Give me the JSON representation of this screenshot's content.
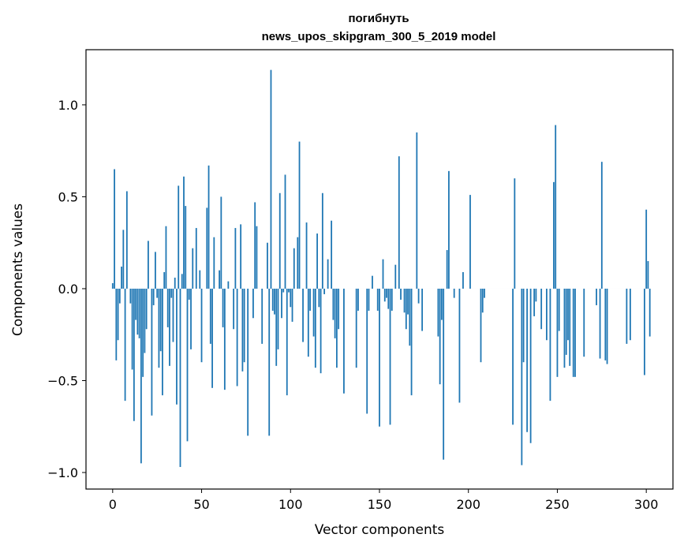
{
  "chart_data": {
    "type": "bar",
    "title_line1": "погибнуть",
    "title_line2": "news_upos_skipgram_300_5_2019 model",
    "xlabel": "Vector components",
    "ylabel": "Components values",
    "xlim": [
      -15,
      315
    ],
    "ylim": [
      -1.09,
      1.3
    ],
    "xticks": [
      0,
      50,
      100,
      150,
      200,
      250,
      300
    ],
    "xtick_labels": [
      "0",
      "50",
      "100",
      "150",
      "200",
      "250",
      "300"
    ],
    "yticks": [
      -1.0,
      -0.5,
      0.0,
      0.5,
      1.0
    ],
    "ytick_labels": [
      "−1.0",
      "−0.5",
      "0.0",
      "0.5",
      "1.0"
    ],
    "bar_color": "#1f77b4",
    "values": [
      0.03,
      0.65,
      -0.39,
      -0.28,
      -0.08,
      0.12,
      0.32,
      -0.61,
      0.53,
      0.0,
      -0.08,
      -0.44,
      -0.72,
      -0.17,
      -0.25,
      -0.27,
      -0.95,
      -0.48,
      -0.35,
      -0.22,
      0.26,
      0.0,
      -0.69,
      -0.09,
      0.2,
      -0.05,
      -0.43,
      -0.34,
      -0.58,
      0.09,
      0.34,
      -0.21,
      -0.42,
      -0.05,
      -0.29,
      0.06,
      -0.63,
      0.56,
      -0.97,
      0.08,
      0.61,
      0.45,
      -0.83,
      -0.06,
      -0.33,
      0.22,
      0.0,
      0.33,
      0.0,
      0.1,
      -0.4,
      0.0,
      0.0,
      0.44,
      0.67,
      -0.3,
      -0.54,
      0.28,
      0.0,
      0.0,
      0.1,
      0.5,
      -0.21,
      -0.55,
      0.0,
      0.04,
      0.0,
      0.0,
      -0.22,
      0.33,
      -0.53,
      0.0,
      0.35,
      -0.45,
      -0.4,
      0.0,
      -0.8,
      0.0,
      0.0,
      -0.16,
      0.47,
      0.34,
      0.0,
      0.0,
      -0.3,
      0.0,
      0.0,
      0.25,
      -0.8,
      1.19,
      -0.12,
      -0.14,
      -0.42,
      -0.33,
      0.52,
      -0.16,
      -0.02,
      0.62,
      -0.58,
      -0.02,
      -0.1,
      -0.18,
      0.22,
      0.0,
      0.28,
      0.8,
      0.0,
      -0.29,
      0.0,
      0.36,
      -0.37,
      -0.12,
      0.0,
      -0.26,
      -0.43,
      0.3,
      -0.1,
      -0.46,
      0.52,
      -0.03,
      0.0,
      0.16,
      0.0,
      0.37,
      -0.17,
      -0.27,
      -0.43,
      -0.22,
      0.0,
      0.0,
      -0.57,
      0.0,
      0.0,
      0.0,
      0.0,
      0.0,
      0.0,
      -0.43,
      -0.12,
      0.0,
      0.0,
      0.0,
      0.0,
      -0.68,
      -0.12,
      0.0,
      0.07,
      0.0,
      0.0,
      -0.12,
      -0.75,
      0.0,
      0.16,
      -0.07,
      -0.05,
      -0.11,
      -0.74,
      -0.12,
      0.0,
      0.13,
      0.0,
      0.72,
      -0.06,
      0.0,
      -0.13,
      -0.22,
      -0.14,
      -0.31,
      -0.58,
      0.0,
      0.0,
      0.85,
      -0.08,
      0.0,
      -0.23,
      0.0,
      0.0,
      0.0,
      0.0,
      0.0,
      0.0,
      0.0,
      0.0,
      -0.26,
      -0.52,
      -0.17,
      -0.93,
      0.0,
      0.21,
      0.64,
      0.0,
      0.0,
      -0.05,
      0.0,
      0.0,
      -0.62,
      0.0,
      0.09,
      0.0,
      0.0,
      0.0,
      0.51,
      0.0,
      0.0,
      0.0,
      0.0,
      0.0,
      -0.4,
      -0.13,
      -0.05,
      0.0,
      0.0,
      0.0,
      0.0,
      0.0,
      0.0,
      0.0,
      0.0,
      0.0,
      0.0,
      0.0,
      0.0,
      0.0,
      0.0,
      0.0,
      -0.74,
      0.6,
      0.0,
      0.0,
      0.0,
      -0.96,
      -0.4,
      0.0,
      -0.78,
      0.0,
      -0.84,
      0.0,
      -0.15,
      -0.07,
      0.0,
      0.0,
      -0.22,
      0.0,
      0.0,
      -0.28,
      0.0,
      -0.61,
      0.0,
      0.58,
      0.89,
      -0.48,
      -0.23,
      0.0,
      0.0,
      -0.43,
      -0.36,
      -0.28,
      -0.42,
      0.0,
      -0.48,
      -0.48,
      0.0,
      0.0,
      0.0,
      0.0,
      -0.37,
      0.0,
      0.0,
      0.0,
      0.0,
      0.0,
      0.0,
      -0.09,
      0.0,
      -0.38,
      0.69,
      0.0,
      -0.39,
      -0.41,
      0.0,
      0.0,
      0.0,
      0.0,
      0.0,
      0.0,
      0.0,
      0.0,
      0.0,
      0.0,
      -0.3,
      0.0,
      -0.28,
      0.0,
      0.0,
      0.0,
      0.0,
      0.0,
      0.0,
      0.0,
      -0.47,
      0.43,
      0.15,
      -0.26
    ]
  }
}
